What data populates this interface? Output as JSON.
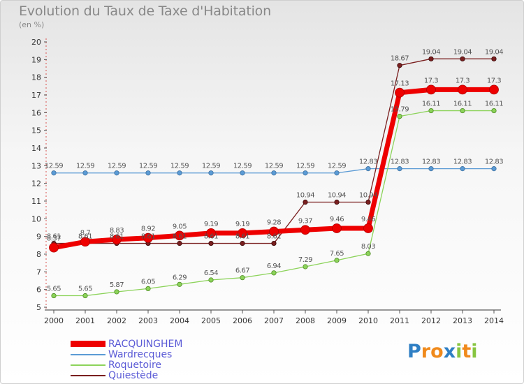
{
  "header": {
    "title": "Evolution du Taux de Taxe d'Habitation",
    "subtitle": "(en %)"
  },
  "logo": {
    "text": "Proxiti",
    "letter_colors": [
      "#2f7fc4",
      "#f08a1c",
      "#f08a1c",
      "#2f7fc4",
      "#87c540",
      "#f08a1c",
      "#87c540"
    ]
  },
  "chart_data": {
    "type": "line",
    "title": "Evolution du Taux de Taxe d'Habitation",
    "ylabel": "(en %)",
    "xlabel": "",
    "ylim": [
      5,
      20
    ],
    "yticks": [
      5,
      6,
      7,
      8,
      9,
      10,
      11,
      12,
      13,
      14,
      15,
      16,
      17,
      18,
      19,
      20
    ],
    "grid": false,
    "legend_position": "bottom-left",
    "categories": [
      "2000",
      "2001",
      "2002",
      "2003",
      "2004",
      "2005",
      "2006",
      "2007",
      "2008",
      "2009",
      "2010",
      "2011",
      "2012",
      "2013",
      "2014"
    ],
    "series": [
      {
        "name": "Wardrecques",
        "color": "#5b9bd5",
        "values": [
          12.59,
          12.59,
          12.59,
          12.59,
          12.59,
          12.59,
          12.59,
          12.59,
          12.59,
          12.59,
          12.83,
          12.83,
          12.83,
          12.83,
          12.83
        ]
      },
      {
        "name": "Roquetoire",
        "color": "#8cd35a",
        "values": [
          5.65,
          5.65,
          5.87,
          6.05,
          6.29,
          6.54,
          6.67,
          6.94,
          7.29,
          7.65,
          8.03,
          15.79,
          16.11,
          16.11,
          16.11
        ]
      },
      {
        "name": "Quiestède",
        "color": "#7a1f1f",
        "values": [
          8.61,
          8.61,
          8.61,
          8.61,
          8.61,
          8.61,
          8.61,
          8.61,
          10.94,
          10.94,
          10.94,
          18.67,
          19.04,
          19.04,
          19.04
        ]
      },
      {
        "name": "RACQUINGHEM",
        "color": "#ee0000",
        "values": [
          8.37,
          8.7,
          8.83,
          8.92,
          9.05,
          9.19,
          9.19,
          9.28,
          9.37,
          9.46,
          9.46,
          17.13,
          17.3,
          17.3,
          17.3
        ]
      }
    ]
  }
}
